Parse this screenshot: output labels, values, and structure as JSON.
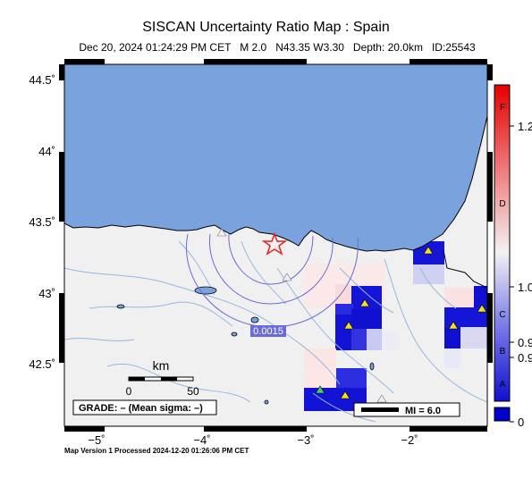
{
  "title": "SISCAN Uncertainty Ratio Map : Spain",
  "subtitle": "Dec 20, 2024 01:24:29 PM CET   M 2.0   N43.35 W3.30   Depth: 20.0km   ID:25543",
  "footer": "Map Version 1 Processed 2024-12-20 01:26:06 PM CET",
  "lat_labels": [
    "44.5˚",
    "44˚",
    "43.5˚",
    "43˚",
    "42.5˚"
  ],
  "lon_labels": [
    "−5˚",
    "−4˚",
    "−3˚",
    "−2˚"
  ],
  "scale_bar": {
    "unit": "km",
    "ticks": [
      "0",
      "50"
    ]
  },
  "grade_box": "GRADE: – (Mean sigma: –)",
  "mi_legend": "MI = 6.0",
  "contour_label": "0.0015",
  "colorbar": {
    "grades": [
      "F",
      "D",
      "C",
      "B",
      "A"
    ],
    "values": [
      "1.2",
      "1.0",
      "0.9",
      "0.9",
      "0"
    ]
  },
  "colors": {
    "sea": "#7aa2dd",
    "land": "#f0f0f0",
    "river": "#93b8e0",
    "contour": "#6a6ad8",
    "epicenter": "#e82020",
    "station_yellow": "#f0e020",
    "station_green": "#40d080"
  }
}
